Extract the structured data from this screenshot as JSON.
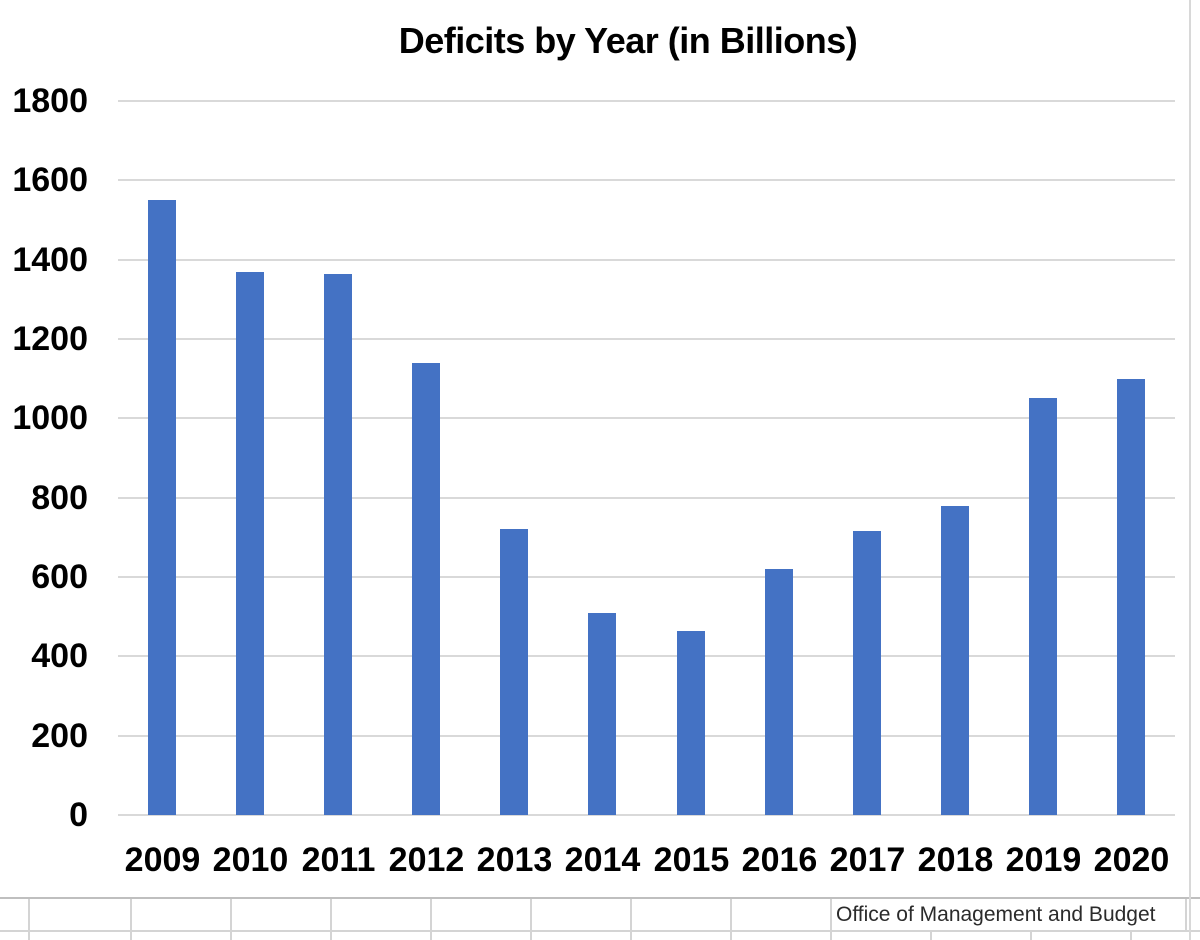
{
  "chart_data": {
    "type": "bar",
    "title": "Deficits by Year (in Billions)",
    "categories": [
      "2009",
      "2010",
      "2011",
      "2012",
      "2013",
      "2014",
      "2015",
      "2016",
      "2017",
      "2018",
      "2019",
      "2020"
    ],
    "values": [
      1550,
      1370,
      1365,
      1140,
      720,
      510,
      465,
      620,
      715,
      780,
      1050,
      1100
    ],
    "xlabel": "",
    "ylabel": "",
    "ylim": [
      0,
      1800
    ],
    "ytick_step": 200,
    "grid": true,
    "legend": false,
    "bar_color": "#4472C4",
    "source_note": "Office of Management and Budget"
  },
  "sheet": {
    "source_text": "Office of Management and Budget"
  },
  "colors": {
    "bar": "#4472C4",
    "chart_gridline": "#D9D9D9",
    "sheet_gridline": "#D4D4D4",
    "page_break": "#D8D8D8",
    "title_text": "#000000",
    "tick_text": "#000000",
    "source_text": "#2B2B2B"
  }
}
